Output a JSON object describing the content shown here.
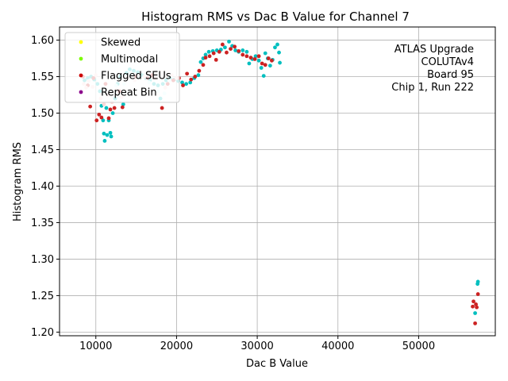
{
  "chart_data": {
    "type": "scatter",
    "title": "Histogram RMS vs Dac B Value for Channel 7",
    "xlabel": "Dac B Value",
    "ylabel": "Histogram RMS",
    "xlim": [
      5500,
      59500
    ],
    "ylim": [
      1.195,
      1.618
    ],
    "x_ticks": [
      10000,
      20000,
      30000,
      40000,
      50000
    ],
    "y_ticks": [
      1.2,
      1.25,
      1.3,
      1.35,
      1.4,
      1.45,
      1.5,
      1.55,
      1.6
    ],
    "x_tick_labels": [
      "10000",
      "20000",
      "30000",
      "40000",
      "50000"
    ],
    "y_tick_labels": [
      "1.20",
      "1.25",
      "1.30",
      "1.35",
      "1.40",
      "1.45",
      "1.50",
      "1.55",
      "1.60"
    ],
    "grid": true,
    "legend_position": "top-left",
    "legend": [
      {
        "label": "Skewed",
        "color": "#ffff00"
      },
      {
        "label": "Multimodal",
        "color": "#7cfc00"
      },
      {
        "label": "Flagged SEUs",
        "color": "#cc0000"
      },
      {
        "label": "Repeat Bin",
        "color": "#8b008b"
      }
    ],
    "annotation": [
      "ATLAS Upgrade",
      "COLUTAv4",
      "Board 95",
      "Chip 1, Run 222"
    ],
    "series": [
      {
        "color": "#00bfbf",
        "points": [
          [
            8600,
            1.545
          ],
          [
            9000,
            1.548
          ],
          [
            9400,
            1.55
          ],
          [
            9800,
            1.546
          ],
          [
            10200,
            1.54
          ],
          [
            10500,
            1.53
          ],
          [
            10700,
            1.51
          ],
          [
            10900,
            1.49
          ],
          [
            11000,
            1.472
          ],
          [
            11100,
            1.462
          ],
          [
            11300,
            1.507
          ],
          [
            11400,
            1.47
          ],
          [
            11600,
            1.49
          ],
          [
            11800,
            1.473
          ],
          [
            11900,
            1.468
          ],
          [
            12100,
            1.5
          ],
          [
            12400,
            1.52
          ],
          [
            12700,
            1.54
          ],
          [
            13000,
            1.55
          ],
          [
            13400,
            1.512
          ],
          [
            13800,
            1.555
          ],
          [
            14200,
            1.56
          ],
          [
            14700,
            1.558
          ],
          [
            15200,
            1.556
          ],
          [
            15700,
            1.552
          ],
          [
            16200,
            1.548
          ],
          [
            16700,
            1.545
          ],
          [
            17200,
            1.54
          ],
          [
            17700,
            1.538
          ],
          [
            18000,
            1.52
          ],
          [
            18300,
            1.54
          ],
          [
            18700,
            1.545
          ],
          [
            19200,
            1.548
          ],
          [
            19700,
            1.546
          ],
          [
            20200,
            1.544
          ],
          [
            20700,
            1.542
          ],
          [
            21200,
            1.54
          ],
          [
            21700,
            1.542
          ],
          [
            22200,
            1.548
          ],
          [
            22700,
            1.552
          ],
          [
            23000,
            1.57
          ],
          [
            23300,
            1.575
          ],
          [
            23600,
            1.58
          ],
          [
            24000,
            1.584
          ],
          [
            24500,
            1.585
          ],
          [
            25000,
            1.586
          ],
          [
            25500,
            1.587
          ],
          [
            26000,
            1.59
          ],
          [
            26500,
            1.598
          ],
          [
            26900,
            1.592
          ],
          [
            27300,
            1.586
          ],
          [
            27700,
            1.584
          ],
          [
            28200,
            1.586
          ],
          [
            28700,
            1.584
          ],
          [
            29000,
            1.568
          ],
          [
            29400,
            1.574
          ],
          [
            29800,
            1.578
          ],
          [
            30200,
            1.572
          ],
          [
            30500,
            1.562
          ],
          [
            30800,
            1.551
          ],
          [
            31000,
            1.582
          ],
          [
            31300,
            1.575
          ],
          [
            31600,
            1.565
          ],
          [
            31900,
            1.573
          ],
          [
            32200,
            1.59
          ],
          [
            32500,
            1.594
          ],
          [
            32700,
            1.583
          ],
          [
            32800,
            1.569
          ],
          [
            57000,
            1.226
          ],
          [
            57300,
            1.266
          ],
          [
            57350,
            1.269
          ]
        ]
      },
      {
        "color": "#cc2222",
        "points": [
          [
            8400,
            1.55
          ],
          [
            9000,
            1.538
          ],
          [
            9300,
            1.509
          ],
          [
            9700,
            1.548
          ],
          [
            10100,
            1.49
          ],
          [
            10400,
            1.498
          ],
          [
            10700,
            1.494
          ],
          [
            11200,
            1.54
          ],
          [
            11600,
            1.493
          ],
          [
            11800,
            1.505
          ],
          [
            12300,
            1.507
          ],
          [
            12900,
            1.53
          ],
          [
            13300,
            1.508
          ],
          [
            15000,
            1.55
          ],
          [
            16400,
            1.548
          ],
          [
            17000,
            1.552
          ],
          [
            18200,
            1.507
          ],
          [
            18900,
            1.54
          ],
          [
            19600,
            1.545
          ],
          [
            20300,
            1.548
          ],
          [
            20800,
            1.538
          ],
          [
            21300,
            1.554
          ],
          [
            21800,
            1.546
          ],
          [
            22300,
            1.55
          ],
          [
            22800,
            1.558
          ],
          [
            23300,
            1.566
          ],
          [
            23600,
            1.576
          ],
          [
            24100,
            1.578
          ],
          [
            24600,
            1.582
          ],
          [
            24900,
            1.573
          ],
          [
            25300,
            1.584
          ],
          [
            25700,
            1.594
          ],
          [
            26200,
            1.583
          ],
          [
            26700,
            1.588
          ],
          [
            27200,
            1.591
          ],
          [
            27700,
            1.585
          ],
          [
            28200,
            1.58
          ],
          [
            28700,
            1.578
          ],
          [
            29200,
            1.576
          ],
          [
            29700,
            1.574
          ],
          [
            30200,
            1.578
          ],
          [
            30600,
            1.568
          ],
          [
            31000,
            1.566
          ],
          [
            31400,
            1.575
          ],
          [
            31800,
            1.572
          ],
          [
            56700,
            1.235
          ],
          [
            56800,
            1.242
          ],
          [
            57000,
            1.212
          ],
          [
            57100,
            1.238
          ],
          [
            57200,
            1.234
          ],
          [
            57350,
            1.252
          ]
        ]
      },
      {
        "color": "#ffd8d8",
        "points": [
          [
            8500,
            1.54
          ],
          [
            8800,
            1.535
          ],
          [
            9100,
            1.544
          ],
          [
            9600,
            1.536
          ],
          [
            10000,
            1.552
          ],
          [
            10600,
            1.52
          ],
          [
            11000,
            1.512
          ],
          [
            11500,
            1.525
          ],
          [
            12000,
            1.515
          ],
          [
            12600,
            1.532
          ],
          [
            13200,
            1.522
          ],
          [
            13900,
            1.548
          ],
          [
            14800,
            1.545
          ],
          [
            16000,
            1.55
          ],
          [
            17400,
            1.548
          ],
          [
            18600,
            1.535
          ],
          [
            19400,
            1.552
          ],
          [
            20000,
            1.548
          ]
        ]
      },
      {
        "color": "#d8ffff",
        "points": [
          [
            13500,
            1.54
          ],
          [
            14300,
            1.553
          ],
          [
            15300,
            1.549
          ],
          [
            16600,
            1.542
          ],
          [
            17700,
            1.53
          ],
          [
            18500,
            1.527
          ],
          [
            19100,
            1.545
          ],
          [
            12500,
            1.538
          ]
        ]
      }
    ]
  }
}
